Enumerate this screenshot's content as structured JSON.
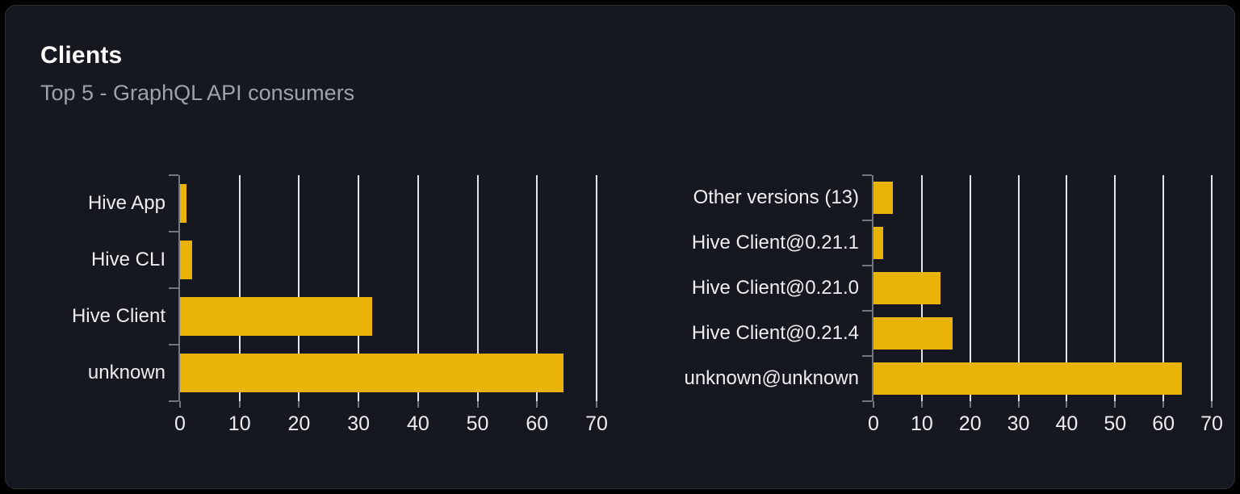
{
  "header": {
    "title": "Clients",
    "subtitle": "Top 5 - GraphQL API consumers"
  },
  "colors": {
    "bar": "#eab308",
    "gridline": "#e2e6ea",
    "axis": "#71767f",
    "label": "#eceef0",
    "title": "#ffffff",
    "subtitle": "#9da3ab",
    "card_background": "#15181e",
    "page_background": "#000000"
  },
  "chart_data": [
    {
      "type": "bar",
      "orientation": "horizontal",
      "title": "",
      "xlabel": "",
      "ylabel": "",
      "categories": [
        "Hive App",
        "Hive CLI",
        "Hive Client",
        "unknown"
      ],
      "values": [
        1.1,
        2.1,
        32.3,
        64.5
      ],
      "xlim": [
        0,
        70
      ],
      "xticks": [
        0,
        10,
        20,
        30,
        40,
        50,
        60,
        70
      ],
      "grid": "vertical",
      "legend": "none",
      "bar_color": "#eab308"
    },
    {
      "type": "bar",
      "orientation": "horizontal",
      "title": "",
      "xlabel": "",
      "ylabel": "",
      "categories": [
        "Other versions (13)",
        "Hive Client@0.21.1",
        "Hive Client@0.21.0",
        "Hive Client@0.21.4",
        "unknown@unknown"
      ],
      "values": [
        4.0,
        2.0,
        13.9,
        16.4,
        63.8
      ],
      "xlim": [
        0,
        70
      ],
      "xticks": [
        0,
        10,
        20,
        30,
        40,
        50,
        60,
        70
      ],
      "grid": "vertical",
      "legend": "none",
      "bar_color": "#eab308"
    }
  ]
}
